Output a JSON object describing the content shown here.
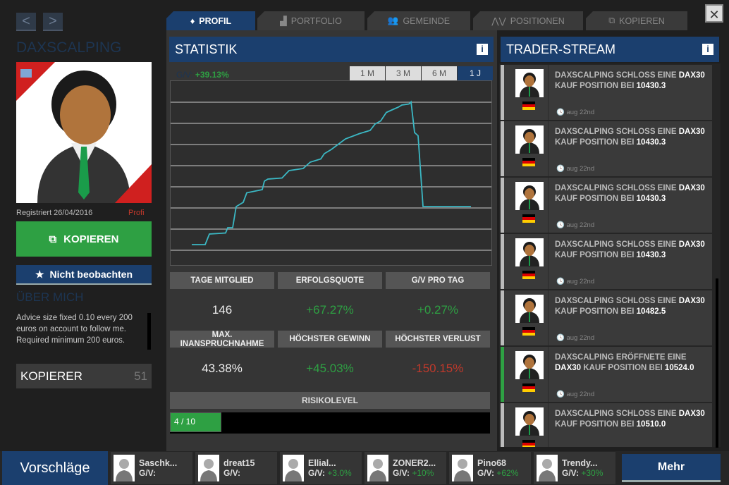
{
  "nav": {
    "prev": "<",
    "next": ">",
    "close": "✕"
  },
  "profile": {
    "name": "DAXSCALPING",
    "registered": "Registriert 26/04/2016",
    "level": "Profi",
    "copy_label": "KOPIEREN",
    "watch_label": "Nicht beobachten",
    "about_title": "ÜBER MICH",
    "about_text": "Advice size fixed 0.10 every 200 euros on account to follow me. Required minimum 200 euros.",
    "copiers_label": "KOPIERER",
    "copiers_count": "51"
  },
  "tabs": [
    {
      "label": "PROFIL"
    },
    {
      "label": "PORTFOLIO"
    },
    {
      "label": "GEMEINDE"
    },
    {
      "label": "POSITIONEN"
    },
    {
      "label": "KOPIEREN"
    }
  ],
  "stats": {
    "title": "STATISTIK",
    "gv_label": "G/V:",
    "gv_value": "+39.13%",
    "ranges": [
      "1 M",
      "3 M",
      "6 M",
      "1 J"
    ],
    "active_range": "1 J",
    "items": [
      {
        "label": "TAGE MITGLIED",
        "value": "146",
        "color": "#eeeeee"
      },
      {
        "label": "ERFOLGSQUOTE",
        "value": "+67.27%",
        "color": "#2ea043"
      },
      {
        "label": "G/V PRO TAG",
        "value": "+0.27%",
        "color": "#2ea043"
      },
      {
        "label": "MAX. INANSPRUCHNAHME",
        "value": "43.38%",
        "color": "#eeeeee"
      },
      {
        "label": "HÖCHSTER GEWINN",
        "value": "+45.03%",
        "color": "#2ea043"
      },
      {
        "label": "HÖCHSTER VERLUST",
        "value": "-150.15%",
        "color": "#c0392b"
      }
    ],
    "risk_label": "RISIKOLEVEL",
    "risk_text": "4 / 10",
    "risk_value": 0.4
  },
  "chart_data": {
    "type": "line",
    "series": [
      {
        "name": "G/V",
        "values": [
          0,
          0,
          5,
          5.5,
          8,
          8,
          18,
          20,
          24.5,
          26,
          30,
          31,
          31.5,
          35,
          36,
          39,
          40.5,
          43,
          45,
          47.5,
          50,
          52.5,
          54,
          57,
          58.5,
          62.5,
          64,
          65,
          66,
          66.5,
          67.5,
          53,
          51.5,
          18,
          18
        ]
      }
    ]
  },
  "stream": {
    "title": "TRADER-STREAM",
    "items": [
      {
        "pre": "DAXSCALPING SCHLOSS EINE ",
        "asset": "DAX30",
        "mid": " KAUF POSITION BEI ",
        "price": "10430.3",
        "time": "aug 22nd",
        "open": false
      },
      {
        "pre": "DAXSCALPING SCHLOSS EINE ",
        "asset": "DAX30",
        "mid": " KAUF POSITION BEI ",
        "price": "10430.3",
        "time": "aug 22nd",
        "open": false
      },
      {
        "pre": "DAXSCALPING SCHLOSS EINE ",
        "asset": "DAX30",
        "mid": " KAUF POSITION BEI ",
        "price": "10430.3",
        "time": "aug 22nd",
        "open": false
      },
      {
        "pre": "DAXSCALPING SCHLOSS EINE ",
        "asset": "DAX30",
        "mid": " KAUF POSITION BEI ",
        "price": "10430.3",
        "time": "aug 22nd",
        "open": false
      },
      {
        "pre": "DAXSCALPING SCHLOSS EINE ",
        "asset": "DAX30",
        "mid": " KAUF POSITION BEI ",
        "price": "10482.5",
        "time": "aug 22nd",
        "open": false
      },
      {
        "pre": "DAXSCALPING ERÖFFNETE EINE ",
        "asset": "DAX30",
        "mid": " KAUF POSITION BEI ",
        "price": "10524.0",
        "time": "aug 22nd",
        "open": true
      },
      {
        "pre": "DAXSCALPING SCHLOSS EINE ",
        "asset": "DAX30",
        "mid": " KAUF POSITION BEI ",
        "price": "10510.0",
        "time": "",
        "open": false
      }
    ]
  },
  "suggestions": {
    "title": "Vorschläge",
    "more": "Mehr",
    "items": [
      {
        "name": "Saschk...",
        "gv_label": "G/V:",
        "gv": ""
      },
      {
        "name": "dreat15",
        "gv_label": "G/V:",
        "gv": ""
      },
      {
        "name": "Ellial...",
        "gv_label": "G/V:",
        "gv": "+3.0%"
      },
      {
        "name": "ZONER2...",
        "gv_label": "G/V:",
        "gv": "+10%"
      },
      {
        "name": "Pino68",
        "gv_label": "G/V:",
        "gv": "+62%"
      },
      {
        "name": "Trendy...",
        "gv_label": "G/V:",
        "gv": "+30%"
      }
    ]
  }
}
